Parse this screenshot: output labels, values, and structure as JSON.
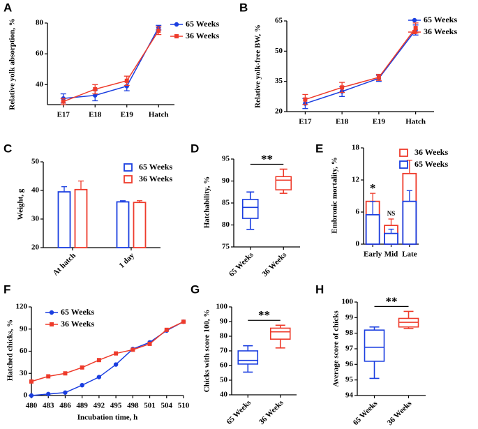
{
  "chart_data": [
    {
      "type": "line",
      "label": "A",
      "y_label": "Relative yolk absorption, %",
      "categories": [
        "E17",
        "E18",
        "E19",
        "Hatch"
      ],
      "series": [
        {
          "name": "65 Weeks",
          "color": "#1a3ee0",
          "marker": "circle",
          "values": [
            31,
            33,
            39,
            77
          ],
          "errors": [
            3,
            3.5,
            3,
            1.5
          ]
        },
        {
          "name": "36 Weeks",
          "color": "#ee3b2b",
          "marker": "square",
          "values": [
            29,
            37,
            42.5,
            75
          ],
          "errors": [
            2,
            3,
            3,
            2.5
          ]
        }
      ],
      "ylim": [
        27,
        80
      ],
      "yticks": [
        40,
        60,
        80
      ]
    },
    {
      "type": "line",
      "label": "B",
      "y_label": "Relative yolk-free BW, %",
      "categories": [
        "E17",
        "E18",
        "E19",
        "Hatch"
      ],
      "series": [
        {
          "name": "65 Weeks",
          "color": "#1a3ee0",
          "marker": "circle",
          "values": [
            24,
            30,
            36.5,
            60.5
          ],
          "errors": [
            2.5,
            2.5,
            1.5,
            2.5
          ]
        },
        {
          "name": "36 Weeks",
          "color": "#ee3b2b",
          "marker": "square",
          "values": [
            26,
            32,
            37,
            61.5
          ],
          "errors": [
            2.5,
            2.5,
            1.5,
            2.5
          ]
        }
      ],
      "ylim": [
        20,
        65
      ],
      "yticks": [
        20,
        35,
        50,
        65
      ]
    },
    {
      "type": "bar",
      "label": "C",
      "y_label": "Weight, g",
      "categories": [
        "At hatch",
        "1 day"
      ],
      "series": [
        {
          "name": "65 Weeks",
          "color": "#1a3ee0",
          "values": [
            39.5,
            36
          ],
          "errors": [
            1.8,
            0.4
          ]
        },
        {
          "name": "36 Weeks",
          "color": "#ee3b2b",
          "values": [
            40.3,
            35.8
          ],
          "errors": [
            3,
            0.6
          ]
        }
      ],
      "ylim": [
        20,
        50
      ],
      "yticks": [
        20,
        30,
        40,
        50
      ]
    },
    {
      "type": "box",
      "label": "D",
      "y_label": "Hatchability, %",
      "categories": [
        "65 Weeks",
        "36 Weeks"
      ],
      "colors": [
        "#1a3ee0",
        "#ee3b2b"
      ],
      "boxes": [
        {
          "min": 79,
          "q1": 81.5,
          "median": 84,
          "q3": 85.8,
          "max": 87.5
        },
        {
          "min": 87.2,
          "q1": 88,
          "median": 90.2,
          "q3": 91,
          "max": 92.7
        }
      ],
      "annotations": [
        {
          "text": "**"
        }
      ],
      "ylim": [
        75,
        95
      ],
      "yticks": [
        75,
        80,
        85,
        90,
        95
      ]
    },
    {
      "type": "overlay_bar",
      "label": "E",
      "y_label": "Embronic mortality, %",
      "categories": [
        "Early",
        "Mid",
        "Late"
      ],
      "series": [
        {
          "name": "36 Weeks",
          "color": "#ee3b2b",
          "values": [
            8,
            3.5,
            13.2
          ],
          "errors": [
            1.5,
            1.2,
            2.5
          ]
        },
        {
          "name": "65 Weeks",
          "color": "#1a3ee0",
          "values": [
            5.5,
            2,
            8
          ],
          "errors": [
            2.5,
            0.8,
            2
          ]
        }
      ],
      "annotations": [
        {
          "text": "*",
          "category": "Early"
        },
        {
          "text": "NS",
          "category": "Mid"
        }
      ],
      "ylim": [
        0,
        18
      ],
      "yticks": [
        0,
        6,
        12,
        18
      ]
    },
    {
      "type": "line",
      "label": "F",
      "y_label": "Hatched chicks, %",
      "x_label": "Incubation time, h",
      "categories": [
        "480",
        "483",
        "486",
        "489",
        "492",
        "495",
        "498",
        "501",
        "504",
        "510"
      ],
      "series": [
        {
          "name": "65 Weeks",
          "color": "#1a3ee0",
          "marker": "circle",
          "values": [
            0,
            2,
            4,
            14,
            25,
            42,
            63,
            72,
            88,
            100
          ]
        },
        {
          "name": "36 Weeks",
          "color": "#ee3b2b",
          "marker": "square",
          "values": [
            19,
            26,
            30,
            38,
            48,
            57,
            62,
            70,
            89,
            100
          ]
        }
      ],
      "ylim": [
        0,
        120
      ],
      "yticks": [
        0,
        30,
        60,
        90,
        120
      ]
    },
    {
      "type": "box",
      "label": "G",
      "y_label": "Chicks with score 100, %",
      "categories": [
        "65 Weeks",
        "36 Weeks"
      ],
      "colors": [
        "#1a3ee0",
        "#ee3b2b"
      ],
      "boxes": [
        {
          "min": 55.5,
          "q1": 61,
          "median": 63.5,
          "q3": 70,
          "max": 73.5
        },
        {
          "min": 72,
          "q1": 78,
          "median": 83,
          "q3": 85.5,
          "max": 87.5
        }
      ],
      "annotations": [
        {
          "text": "**"
        }
      ],
      "ylim": [
        40,
        100
      ],
      "yticks": [
        40,
        50,
        60,
        70,
        80,
        90,
        100
      ]
    },
    {
      "type": "box",
      "label": "H",
      "y_label": "Average score of chicks",
      "categories": [
        "65 Weeks",
        "36 Weeks"
      ],
      "colors": [
        "#1a3ee0",
        "#ee3b2b"
      ],
      "boxes": [
        {
          "min": 95.1,
          "q1": 96.2,
          "median": 97.1,
          "q3": 98.2,
          "max": 98.4
        },
        {
          "min": 98.3,
          "q1": 98.4,
          "median": 98.7,
          "q3": 98.95,
          "max": 99.4
        }
      ],
      "annotations": [
        {
          "text": "**"
        }
      ],
      "ylim": [
        94,
        100
      ],
      "yticks": [
        94,
        95,
        96,
        97,
        98,
        99,
        100
      ]
    }
  ]
}
